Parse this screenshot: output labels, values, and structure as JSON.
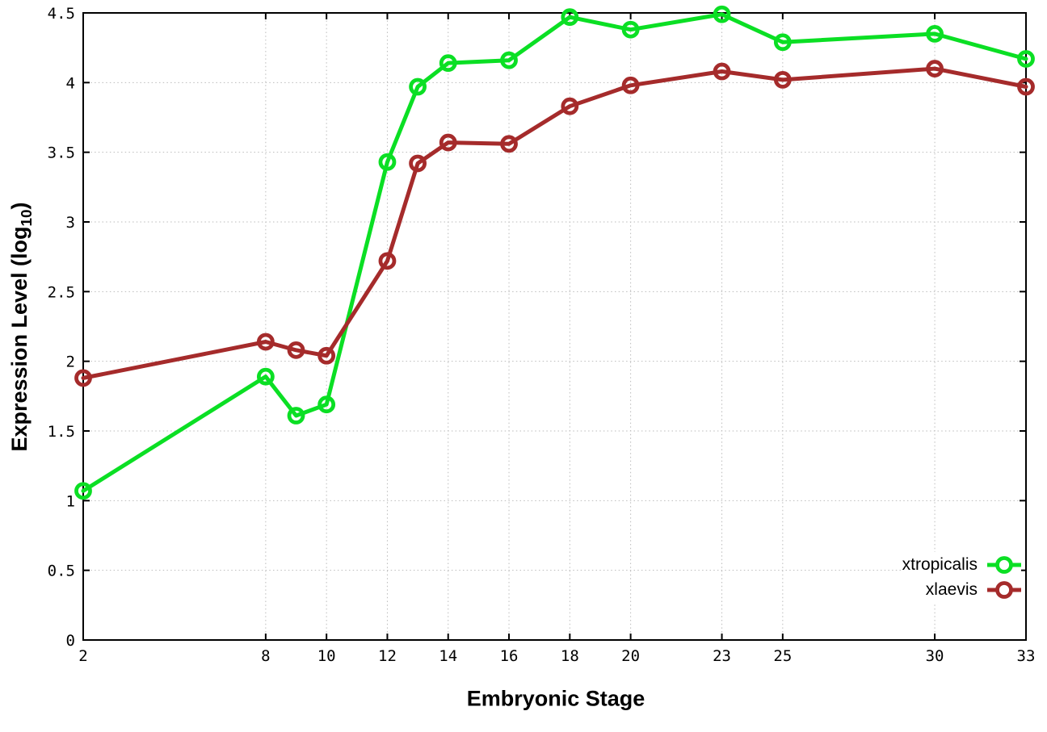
{
  "axes": {
    "xlabel": "Embryonic Stage",
    "ylabel_prefix": "Expression Level (log",
    "ylabel_sub": "10",
    "ylabel_suffix": ")"
  },
  "chart_data": {
    "type": "line",
    "title": "",
    "xlabel": "Embryonic Stage",
    "ylabel": "Expression Level (log10)",
    "x": [
      2,
      8,
      9,
      10,
      12,
      13,
      14,
      16,
      18,
      20,
      23,
      25,
      30,
      33
    ],
    "series": [
      {
        "name": "xtropicalis",
        "color": "#0bdf24",
        "values": [
          1.07,
          1.89,
          1.61,
          1.69,
          3.43,
          3.97,
          4.14,
          4.16,
          4.47,
          4.38,
          4.49,
          4.29,
          4.35,
          4.17
        ]
      },
      {
        "name": "xlaevis",
        "color": "#a52b2b",
        "values": [
          1.88,
          2.14,
          2.08,
          2.04,
          2.72,
          3.42,
          3.57,
          3.56,
          3.83,
          3.98,
          4.08,
          4.02,
          4.1,
          3.97
        ]
      }
    ],
    "xlim": [
      2,
      33
    ],
    "ylim": [
      0,
      4.5
    ],
    "x_ticks": [
      2,
      8,
      10,
      12,
      14,
      16,
      18,
      20,
      23,
      25,
      30,
      33
    ],
    "y_ticks": [
      0,
      0.5,
      1,
      1.5,
      2,
      2.5,
      3,
      3.5,
      4,
      4.5
    ],
    "grid": true,
    "grid_style": "dotted",
    "legend_position": "inside-bottom-right",
    "marker": "open-circle"
  },
  "colors": {
    "background": "#ffffff",
    "border": "#000000",
    "grid": "#bbbbbb",
    "tick_label": "#000000",
    "series_green": "#0bdf24",
    "series_red": "#a52b2b"
  }
}
